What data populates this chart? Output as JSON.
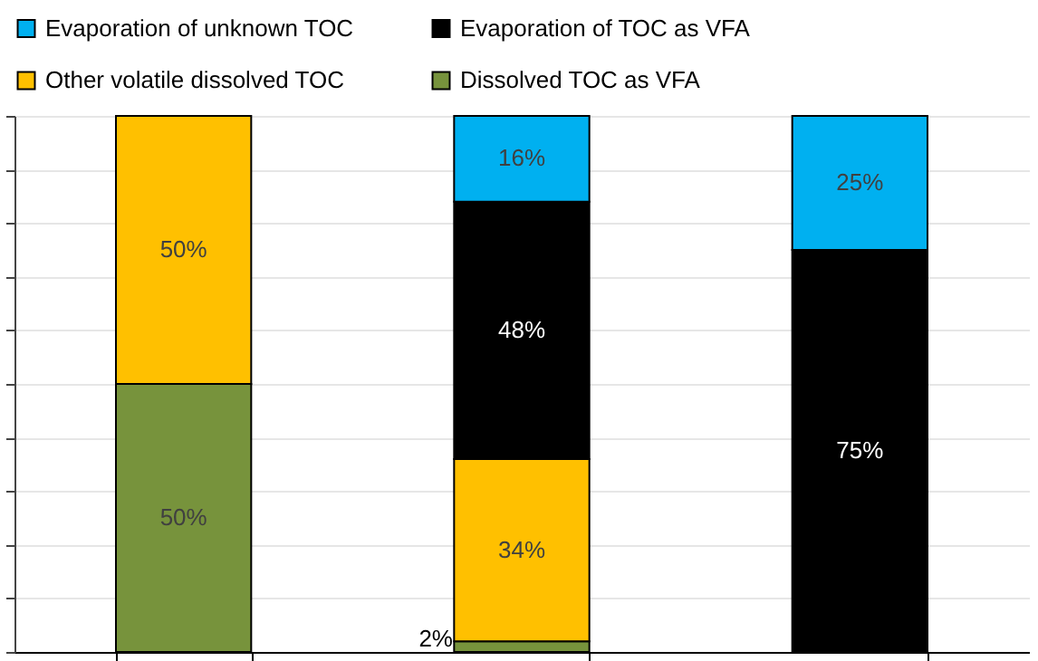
{
  "chart_data": {
    "type": "bar",
    "stacked": true,
    "categories": [
      null,
      null,
      null
    ],
    "series": [
      {
        "name": "Dissolved TOC as VFA",
        "color": "#77933c",
        "values": [
          50,
          2,
          0
        ],
        "value_labels": [
          "50%",
          "2%",
          null
        ]
      },
      {
        "name": "Other volatile dissolved TOC",
        "color": "#ffc000",
        "values": [
          50,
          34,
          0
        ],
        "value_labels": [
          "50%",
          "34%",
          null
        ]
      },
      {
        "name": "Evaporation of TOC as VFA",
        "color": "#000000",
        "values": [
          0,
          48,
          75
        ],
        "value_labels": [
          null,
          "48%",
          "75%"
        ]
      },
      {
        "name": "Evaporation of unknown TOC",
        "color": "#00b0f0",
        "values": [
          0,
          16,
          25
        ],
        "value_labels": [
          null,
          "16%",
          "25%"
        ]
      }
    ],
    "ylim": [
      0,
      100
    ],
    "yticks": [
      {
        "value": 0,
        "label": null
      },
      {
        "value": 10,
        "label": null
      },
      {
        "value": 20,
        "label": null
      },
      {
        "value": 30,
        "label": null
      },
      {
        "value": 40,
        "label": null
      },
      {
        "value": 50,
        "label": null
      },
      {
        "value": 60,
        "label": null
      },
      {
        "value": 70,
        "label": null
      },
      {
        "value": 80,
        "label": null
      },
      {
        "value": 90,
        "label": null
      },
      {
        "value": 100,
        "label": null
      }
    ],
    "grid": "y",
    "legend": "top"
  }
}
